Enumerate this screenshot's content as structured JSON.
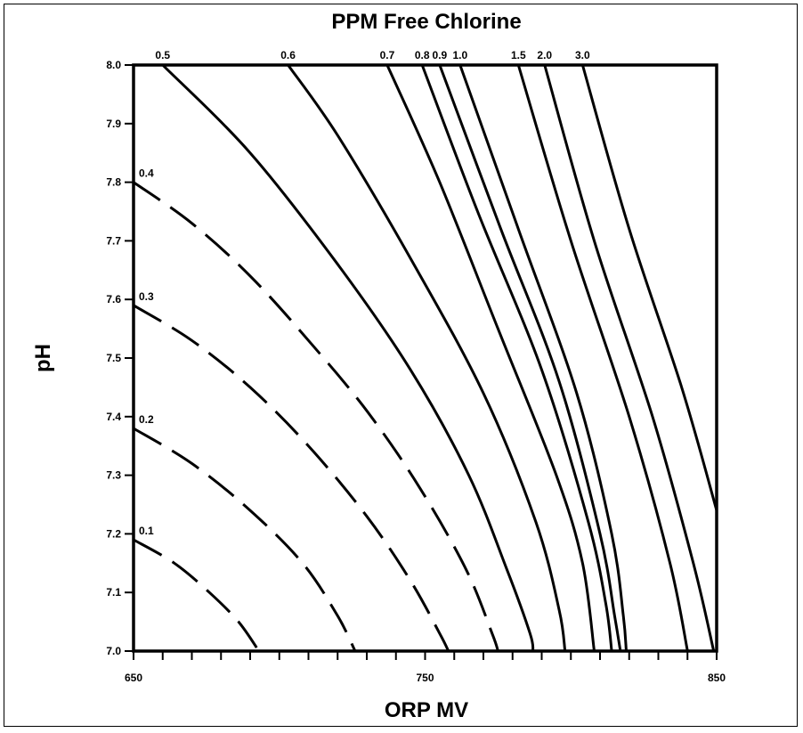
{
  "chart_data": {
    "type": "line",
    "title": "PPM Free Chlorine",
    "xlabel": "ORP MV",
    "ylabel": "pH",
    "xlim": [
      650,
      850
    ],
    "ylim": [
      7.0,
      8.0
    ],
    "x_tick_values": [
      650,
      660,
      670,
      680,
      690,
      700,
      710,
      720,
      730,
      740,
      750,
      760,
      770,
      780,
      790,
      800,
      810,
      820,
      830,
      840,
      850
    ],
    "x_tick_labels": [
      {
        "value": 650,
        "label": "650"
      },
      {
        "value": 750,
        "label": "750"
      },
      {
        "value": 850,
        "label": "850"
      }
    ],
    "y_ticks": [
      {
        "value": 7.0,
        "label": "7.0"
      },
      {
        "value": 7.1,
        "label": "7.1"
      },
      {
        "value": 7.2,
        "label": "7.2"
      },
      {
        "value": 7.3,
        "label": "7.3"
      },
      {
        "value": 7.4,
        "label": "7.4"
      },
      {
        "value": 7.5,
        "label": "7.5"
      },
      {
        "value": 7.6,
        "label": "7.6"
      },
      {
        "value": 7.7,
        "label": "7.7"
      },
      {
        "value": 7.8,
        "label": "7.8"
      },
      {
        "value": 7.9,
        "label": "7.9"
      },
      {
        "value": 8.0,
        "label": "8.0"
      }
    ],
    "grid": false,
    "line_color": "#000000",
    "series": [
      {
        "name": "0.1",
        "style": "dashed",
        "label_pos": "left",
        "points": [
          [
            650,
            7.19
          ],
          [
            664,
            7.15
          ],
          [
            676,
            7.1
          ],
          [
            686,
            7.05
          ],
          [
            693,
            7.0
          ]
        ]
      },
      {
        "name": "0.2",
        "style": "dashed",
        "label_pos": "left",
        "points": [
          [
            650,
            7.38
          ],
          [
            670,
            7.32
          ],
          [
            690,
            7.24
          ],
          [
            708,
            7.15
          ],
          [
            720,
            7.06
          ],
          [
            726,
            7.0
          ]
        ]
      },
      {
        "name": "0.3",
        "style": "dashed",
        "label_pos": "left",
        "points": [
          [
            650,
            7.59
          ],
          [
            670,
            7.53
          ],
          [
            690,
            7.45
          ],
          [
            710,
            7.35
          ],
          [
            730,
            7.23
          ],
          [
            745,
            7.12
          ],
          [
            755,
            7.03
          ],
          [
            758,
            7.0
          ]
        ]
      },
      {
        "name": "0.4",
        "style": "dashed",
        "label_pos": "left",
        "points": [
          [
            650,
            7.8
          ],
          [
            670,
            7.73
          ],
          [
            690,
            7.64
          ],
          [
            710,
            7.53
          ],
          [
            730,
            7.41
          ],
          [
            748,
            7.28
          ],
          [
            764,
            7.14
          ],
          [
            773,
            7.03
          ],
          [
            775,
            7.0
          ]
        ]
      },
      {
        "name": "0.5",
        "style": "solid",
        "label_pos": "top",
        "points": [
          [
            660,
            8.0
          ],
          [
            690,
            7.85
          ],
          [
            720,
            7.66
          ],
          [
            745,
            7.48
          ],
          [
            765,
            7.3
          ],
          [
            778,
            7.14
          ],
          [
            786,
            7.03
          ],
          [
            787,
            7.0
          ]
        ]
      },
      {
        "name": "0.6",
        "style": "solid",
        "label_pos": "top",
        "points": [
          [
            703,
            8.0
          ],
          [
            720,
            7.88
          ],
          [
            745,
            7.67
          ],
          [
            770,
            7.44
          ],
          [
            788,
            7.22
          ],
          [
            796,
            7.07
          ],
          [
            798,
            7.0
          ]
        ]
      },
      {
        "name": "0.7",
        "style": "solid",
        "label_pos": "top",
        "points": [
          [
            737,
            8.0
          ],
          [
            755,
            7.8
          ],
          [
            775,
            7.55
          ],
          [
            795,
            7.3
          ],
          [
            804,
            7.15
          ],
          [
            808,
            7.0
          ]
        ]
      },
      {
        "name": "0.8",
        "style": "solid",
        "label_pos": "top",
        "points": [
          [
            749,
            8.0
          ],
          [
            768,
            7.75
          ],
          [
            790,
            7.48
          ],
          [
            806,
            7.22
          ],
          [
            812,
            7.08
          ],
          [
            814,
            7.0
          ]
        ]
      },
      {
        "name": "0.9",
        "style": "solid",
        "label_pos": "top",
        "points": [
          [
            755,
            8.0
          ],
          [
            776,
            7.72
          ],
          [
            796,
            7.46
          ],
          [
            810,
            7.2
          ],
          [
            815,
            7.06
          ],
          [
            817,
            7.0
          ]
        ]
      },
      {
        "name": "1.0",
        "style": "solid",
        "label_pos": "top",
        "points": [
          [
            762,
            8.0
          ],
          [
            782,
            7.72
          ],
          [
            802,
            7.44
          ],
          [
            814,
            7.2
          ],
          [
            818,
            7.06
          ],
          [
            819,
            7.0
          ]
        ]
      },
      {
        "name": "1.5",
        "style": "solid",
        "label_pos": "top",
        "points": [
          [
            782,
            8.0
          ],
          [
            800,
            7.7
          ],
          [
            820,
            7.4
          ],
          [
            834,
            7.15
          ],
          [
            840,
            7.0
          ]
        ]
      },
      {
        "name": "2.0",
        "style": "solid",
        "label_pos": "top",
        "points": [
          [
            791,
            8.0
          ],
          [
            808,
            7.7
          ],
          [
            828,
            7.4
          ],
          [
            842,
            7.15
          ],
          [
            849,
            7.0
          ]
        ]
      },
      {
        "name": "3.0",
        "style": "solid",
        "label_pos": "top",
        "points": [
          [
            804,
            8.0
          ],
          [
            820,
            7.72
          ],
          [
            838,
            7.45
          ],
          [
            850,
            7.24
          ]
        ]
      }
    ]
  }
}
